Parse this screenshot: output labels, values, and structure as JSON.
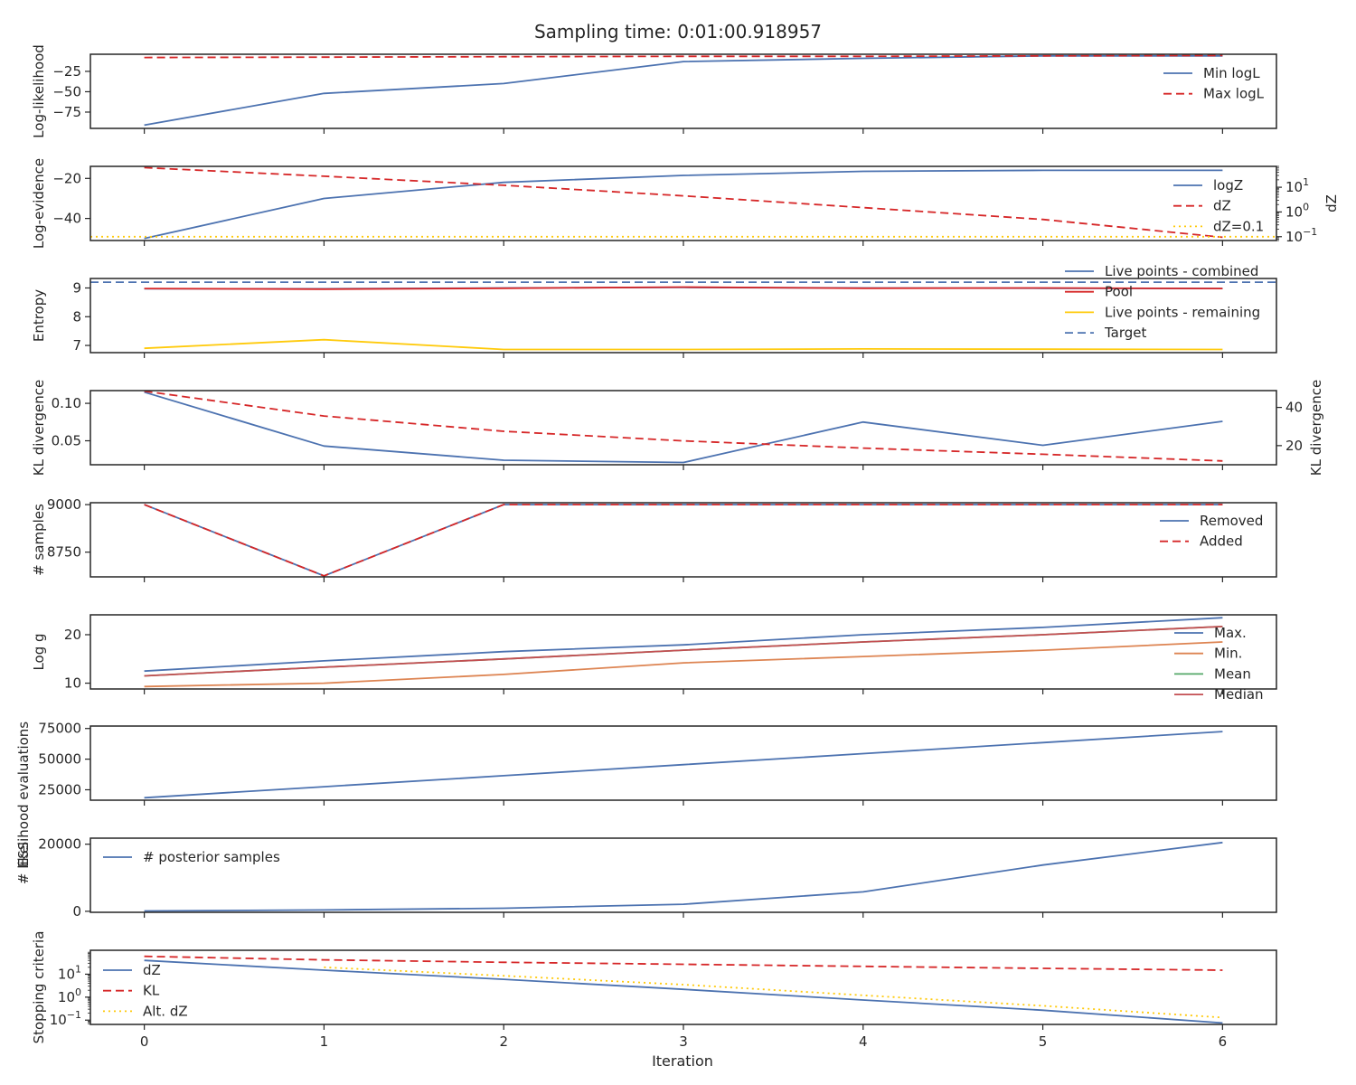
{
  "figure": {
    "title": "Sampling time: 0:01:00.918957"
  },
  "chart_data": [
    {
      "type": "line",
      "ylabel": "Log-likelihood",
      "x": [
        0,
        1,
        2,
        3,
        4,
        5,
        6
      ],
      "xlim": [
        -0.3,
        6.3
      ],
      "ylim": [
        -95,
        -4
      ],
      "yticks": [
        -25,
        -50,
        -75
      ],
      "tick_labels": [
        "−25",
        "−50",
        "−75"
      ],
      "series": [
        {
          "name": "Min logL",
          "values": [
            -91,
            -52,
            -40,
            -13,
            -9,
            -6,
            -6
          ],
          "color": "#4c72b0",
          "dash": "solid"
        },
        {
          "name": "Max logL",
          "values": [
            -8,
            -7.5,
            -7,
            -6.5,
            -6.5,
            -6,
            -5.5
          ],
          "color": "#d62728",
          "dash": "dashed"
        }
      ],
      "legend": "top-right"
    },
    {
      "type": "line",
      "ylabel": "Log-evidence",
      "y2label": "dZ",
      "y2scale": "log",
      "x": [
        0,
        1,
        2,
        3,
        4,
        5,
        6
      ],
      "xlim": [
        -0.3,
        6.3
      ],
      "ylim": [
        -51,
        -14
      ],
      "yticks": [
        -20,
        -40
      ],
      "tick_labels": [
        "−20",
        "−40"
      ],
      "y2lim": [
        0.07,
        70
      ],
      "y2ticks": [
        10,
        1,
        0.1
      ],
      "y2_tick_labels": [
        {
          "base": "10",
          "exp": "1"
        },
        {
          "base": "10",
          "exp": "0"
        },
        {
          "base": "10",
          "exp": "−1"
        }
      ],
      "series": [
        {
          "name": "logZ",
          "axis": "left",
          "values": [
            -50,
            -30,
            -22,
            -18.5,
            -16.5,
            -16,
            -16
          ],
          "color": "#4c72b0",
          "dash": "solid"
        },
        {
          "name": "dZ",
          "axis": "right",
          "values": [
            62,
            28,
            12,
            4.5,
            1.5,
            0.5,
            0.095
          ],
          "color": "#d62728",
          "dash": "dashed"
        },
        {
          "name": "dZ=0.1",
          "axis": "right",
          "values": [
            0.1,
            0.1,
            0.1,
            0.1,
            0.1,
            0.1,
            0.1
          ],
          "color": "#ffca0a",
          "dash": "dotted",
          "full_width": true
        }
      ],
      "legend": "top-right"
    },
    {
      "type": "line",
      "ylabel": "Entropy",
      "x": [
        0,
        1,
        2,
        3,
        4,
        5,
        6
      ],
      "xlim": [
        -0.3,
        6.3
      ],
      "ylim": [
        6.75,
        9.33
      ],
      "yticks": [
        9,
        8,
        7
      ],
      "tick_labels": [
        "9",
        "8",
        "7"
      ],
      "series": [
        {
          "name": "Live points - combined",
          "values": [
            8.97,
            8.97,
            9.0,
            9.02,
            9.0,
            8.99,
            8.98
          ],
          "color": "#4c72b0",
          "dash": "solid"
        },
        {
          "name": "Pool",
          "values": [
            8.98,
            8.96,
            8.99,
            9.03,
            8.99,
            9.0,
            8.98
          ],
          "color": "#d62728",
          "dash": "solid"
        },
        {
          "name": "Live points - remaining",
          "values": [
            6.9,
            7.2,
            6.86,
            6.86,
            6.88,
            6.87,
            6.86
          ],
          "color": "#ffca0a",
          "dash": "solid"
        },
        {
          "name": "Target",
          "values": [
            9.2,
            9.2,
            9.2,
            9.2,
            9.2,
            9.2,
            9.2
          ],
          "color": "#4c72b0",
          "dash": "dashed",
          "full_width": true
        }
      ],
      "legend": "top-right"
    },
    {
      "type": "line",
      "ylabel": "KL divergence",
      "y2label": "KL divergence",
      "x": [
        0,
        1,
        2,
        3,
        4,
        5,
        6
      ],
      "xlim": [
        -0.3,
        6.3
      ],
      "ylim": [
        0.018,
        0.117
      ],
      "yticks": [
        0.1,
        0.05
      ],
      "tick_labels": [
        "0.10",
        "0.05"
      ],
      "y2lim": [
        10.0,
        48.8
      ],
      "y2ticks": [
        40,
        20
      ],
      "y2_tick_labels": [
        "40",
        "20"
      ],
      "series": [
        {
          "name": "",
          "axis": "left",
          "values": [
            0.115,
            0.043,
            0.024,
            0.021,
            0.075,
            0.044,
            0.076
          ],
          "color": "#4c72b0",
          "dash": "solid"
        },
        {
          "name": "",
          "axis": "right",
          "values": [
            48.5,
            35.5,
            27.5,
            22.5,
            18.7,
            15.5,
            12.0
          ],
          "color": "#d62728",
          "dash": "dashed"
        }
      ]
    },
    {
      "type": "line",
      "ylabel": "# samples",
      "x": [
        0,
        1,
        2,
        3,
        4,
        5,
        6
      ],
      "xlim": [
        -0.3,
        6.3
      ],
      "ylim": [
        8620,
        9010
      ],
      "yticks": [
        9000,
        8750
      ],
      "tick_labels": [
        "9000",
        "8750"
      ],
      "series": [
        {
          "name": "Removed",
          "values": [
            9000,
            8625,
            9000,
            9000,
            9000,
            9000,
            9000
          ],
          "color": "#4c72b0",
          "dash": "solid"
        },
        {
          "name": "Added",
          "values": [
            9000,
            8625,
            9000,
            9000,
            9000,
            9000,
            9000
          ],
          "color": "#d62728",
          "dash": "dashed"
        }
      ],
      "legend": "right"
    },
    {
      "type": "line",
      "ylabel": "Log g",
      "x": [
        0,
        1,
        2,
        3,
        4,
        5,
        6
      ],
      "xlim": [
        -0.3,
        6.3
      ],
      "ylim": [
        8.8,
        24.1
      ],
      "yticks": [
        20,
        10
      ],
      "tick_labels": [
        "20",
        "10"
      ],
      "series": [
        {
          "name": "Max.",
          "values": [
            12.5,
            14.6,
            16.5,
            17.9,
            20.0,
            21.5,
            23.5
          ],
          "color": "#4c72b0",
          "dash": "solid"
        },
        {
          "name": "Min.",
          "values": [
            9.3,
            10.0,
            11.8,
            14.2,
            15.5,
            16.8,
            18.5
          ],
          "color": "#dd8452",
          "dash": "solid"
        },
        {
          "name": "Mean",
          "values": [
            11.5,
            13.3,
            15.0,
            16.8,
            18.5,
            20.0,
            21.7
          ],
          "color": "#55a868",
          "dash": "solid"
        },
        {
          "name": "Median",
          "values": [
            11.5,
            13.3,
            15.0,
            16.8,
            18.5,
            20.0,
            21.7
          ],
          "color": "#c44e52",
          "dash": "solid"
        }
      ],
      "legend": "right"
    },
    {
      "type": "line",
      "ylabel": "# likelihood evaluations",
      "x": [
        0,
        1,
        2,
        3,
        4,
        5,
        6
      ],
      "xlim": [
        -0.3,
        6.3
      ],
      "ylim": [
        16500,
        77000
      ],
      "yticks": [
        75000,
        50000,
        25000
      ],
      "tick_labels": [
        "75000",
        "50000",
        "25000"
      ],
      "series": [
        {
          "name": "",
          "values": [
            18500,
            27500,
            36500,
            45500,
            54500,
            63500,
            72500
          ],
          "color": "#4c72b0",
          "dash": "solid"
        }
      ]
    },
    {
      "type": "line",
      "ylabel": "ESS",
      "x": [
        0,
        1,
        2,
        3,
        4,
        5,
        6
      ],
      "xlim": [
        -0.3,
        6.3
      ],
      "ylim": [
        -300,
        21800
      ],
      "yticks": [
        20000,
        0
      ],
      "tick_labels": [
        "20000",
        "0"
      ],
      "series": [
        {
          "name": "# posterior samples",
          "values": [
            100,
            400,
            900,
            2100,
            5800,
            13800,
            20500
          ],
          "color": "#4c72b0",
          "dash": "solid"
        }
      ],
      "legend": "top-left"
    },
    {
      "type": "line",
      "ylabel": "Stopping criteria",
      "xlabel": "Iteration",
      "yscale": "log",
      "x": [
        0,
        1,
        2,
        3,
        4,
        5,
        6
      ],
      "xlim": [
        -0.3,
        6.3
      ],
      "xticks": [
        0,
        1,
        2,
        3,
        4,
        5,
        6
      ],
      "x_tick_labels": [
        "0",
        "1",
        "2",
        "3",
        "4",
        "5",
        "6"
      ],
      "ylim": [
        0.065,
        110
      ],
      "yticks": [
        10,
        1,
        0.1
      ],
      "tick_labels": [
        {
          "base": "10",
          "exp": "1"
        },
        {
          "base": "10",
          "exp": "0"
        },
        {
          "base": "10",
          "exp": "−1"
        }
      ],
      "series": [
        {
          "name": "dZ",
          "values": [
            40,
            15,
            6,
            2.2,
            0.75,
            0.27,
            0.075
          ],
          "color": "#4c72b0",
          "dash": "solid"
        },
        {
          "name": "KL",
          "values": [
            60,
            42,
            33,
            27,
            22,
            18,
            15
          ],
          "color": "#d62728",
          "dash": "dashed"
        },
        {
          "name": "Alt. dZ",
          "values": [
            null,
            20,
            8.5,
            3.5,
            1.2,
            0.42,
            0.13
          ],
          "color": "#ffca0a",
          "dash": "dotted"
        }
      ],
      "legend": "left"
    }
  ]
}
